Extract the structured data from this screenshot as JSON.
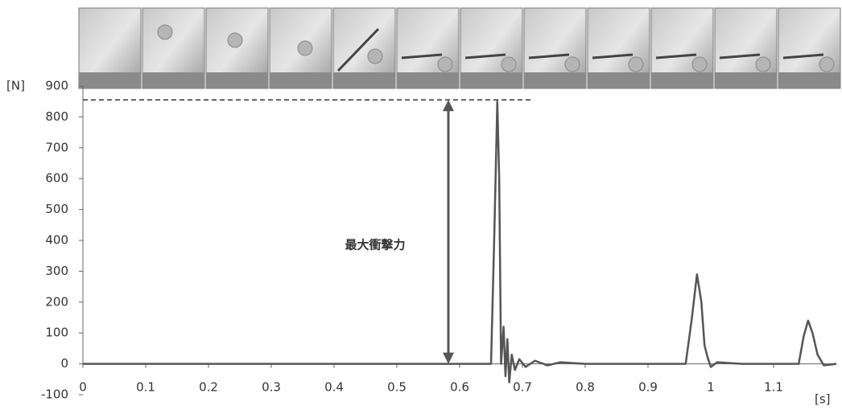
{
  "chart_data": {
    "type": "line",
    "y_label": "[N]",
    "x_label": "[s]",
    "annotation": {
      "text": "最大衝撃力",
      "value": 855
    },
    "xlim": [
      0,
      1.2
    ],
    "xticks": [
      0,
      0.1,
      0.2,
      0.3,
      0.4,
      0.5,
      0.6,
      0.7,
      0.8,
      0.9,
      1,
      1.1
    ],
    "ylim": [
      -100,
      900
    ],
    "yticks": [
      -100,
      0,
      100,
      200,
      300,
      400,
      500,
      600,
      700,
      800,
      900
    ],
    "x": [
      0,
      0.65,
      0.655,
      0.66,
      0.663,
      0.666,
      0.67,
      0.673,
      0.676,
      0.679,
      0.683,
      0.688,
      0.695,
      0.705,
      0.72,
      0.74,
      0.76,
      0.8,
      0.9,
      0.96,
      0.97,
      0.978,
      0.985,
      0.99,
      0.995,
      1.0,
      1.01,
      1.05,
      1.14,
      1.148,
      1.155,
      1.162,
      1.17,
      1.18,
      1.2
    ],
    "series": [
      {
        "color": "#555555",
        "values": [
          0,
          0,
          400,
          850,
          600,
          0,
          120,
          -40,
          80,
          -60,
          30,
          -20,
          15,
          -10,
          10,
          -5,
          5,
          0,
          0,
          0,
          150,
          290,
          200,
          60,
          20,
          -10,
          5,
          0,
          0,
          90,
          140,
          100,
          30,
          -5,
          0
        ]
      }
    ]
  }
}
